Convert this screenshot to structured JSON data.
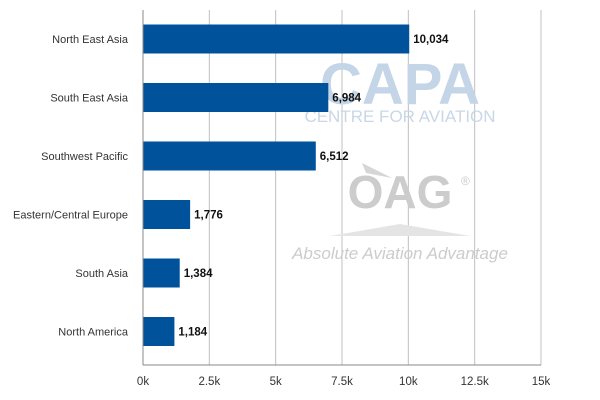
{
  "chart_data": {
    "type": "bar",
    "orientation": "horizontal",
    "categories": [
      "North East Asia",
      "South East Asia",
      "Southwest Pacific",
      "Eastern/Central Europe",
      "South Asia",
      "North America"
    ],
    "values": [
      10034,
      6984,
      6512,
      1776,
      1384,
      1184
    ],
    "value_labels": [
      "10,034",
      "6,984",
      "6,512",
      "1,776",
      "1,384",
      "1,184"
    ],
    "x_ticks": [
      0,
      2500,
      5000,
      7500,
      10000,
      12500,
      15000
    ],
    "x_tick_labels": [
      "0k",
      "2.5k",
      "5k",
      "7.5k",
      "10k",
      "12.5k",
      "15k"
    ],
    "xlim": [
      0,
      15000
    ],
    "title": "",
    "xlabel": "",
    "ylabel": "",
    "grid": "vertical",
    "legend": "none",
    "bar_color": "#00529b",
    "grid_color": "#c0c0c0",
    "axis_color": "#888888"
  },
  "watermark": {
    "capa_logo": "CAPA",
    "capa_sub": "CENTRE FOR AVIATION",
    "oag_logo": "OAG",
    "oag_registered": "®",
    "oag_tagline": "Absolute Aviation Advantage"
  }
}
